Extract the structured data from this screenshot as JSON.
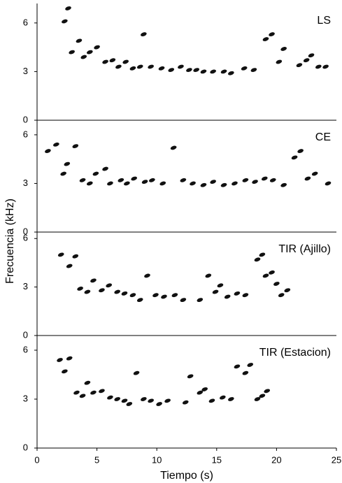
{
  "chart_data": [
    {
      "type": "scatter",
      "label": "LS",
      "xlim": [
        0,
        25
      ],
      "ylim": [
        0,
        7.2
      ],
      "yticks": [
        0,
        3,
        6
      ],
      "x": [
        2.3,
        2.6,
        2.9,
        3.5,
        3.9,
        4.4,
        5.0,
        5.7,
        6.3,
        6.8,
        7.4,
        8.0,
        8.9,
        8.6,
        9.5,
        10.4,
        11.2,
        12.0,
        12.7,
        13.3,
        13.9,
        14.7,
        15.6,
        16.2,
        17.3,
        18.1,
        19.1,
        19.6,
        20.2,
        20.6,
        21.9,
        22.5,
        22.9,
        23.5,
        24.1
      ],
      "y": [
        6.1,
        6.9,
        4.2,
        4.9,
        3.9,
        4.2,
        4.5,
        3.6,
        3.7,
        3.3,
        3.6,
        3.2,
        5.3,
        3.3,
        3.3,
        3.2,
        3.1,
        3.3,
        3.1,
        3.1,
        3.0,
        3.0,
        3.0,
        2.9,
        3.2,
        3.1,
        5.0,
        5.3,
        3.6,
        4.4,
        3.4,
        3.7,
        4.0,
        3.3,
        3.3
      ]
    },
    {
      "type": "scatter",
      "label": "CE",
      "y_label": "Frecuencia (kHz)",
      "xlim": [
        0,
        25
      ],
      "ylim": [
        0,
        6.9
      ],
      "yticks": [
        0,
        3,
        6
      ],
      "x": [
        0.9,
        1.6,
        2.2,
        2.5,
        3.2,
        3.8,
        4.4,
        4.9,
        5.7,
        6.1,
        7.0,
        7.5,
        8.1,
        9.0,
        9.6,
        10.5,
        11.4,
        12.2,
        13.0,
        13.9,
        14.7,
        15.6,
        16.5,
        17.4,
        18.2,
        19.0,
        19.7,
        20.6,
        21.5,
        22.0,
        22.6,
        23.2,
        24.3
      ],
      "y": [
        5.0,
        5.4,
        3.6,
        4.2,
        5.3,
        3.2,
        3.0,
        3.6,
        3.9,
        3.0,
        3.2,
        3.0,
        3.3,
        3.1,
        3.2,
        3.0,
        5.2,
        3.2,
        3.0,
        2.9,
        3.1,
        2.9,
        3.0,
        3.2,
        3.1,
        3.3,
        3.2,
        2.9,
        4.6,
        5.0,
        3.3,
        3.6,
        3.0
      ]
    },
    {
      "type": "scatter",
      "label": "TIR (Ajillo)",
      "xlim": [
        0,
        25
      ],
      "ylim": [
        0,
        6.4
      ],
      "yticks": [
        0,
        3,
        6
      ],
      "x": [
        2.0,
        2.7,
        3.2,
        3.6,
        4.2,
        4.7,
        5.4,
        6.0,
        6.7,
        7.3,
        8.0,
        8.6,
        9.2,
        9.9,
        10.6,
        11.5,
        12.2,
        13.6,
        14.3,
        14.9,
        15.3,
        15.9,
        16.7,
        17.4,
        18.4,
        18.8,
        19.1,
        19.6,
        20.0,
        20.4,
        20.9
      ],
      "y": [
        5.0,
        4.3,
        4.9,
        2.9,
        2.7,
        3.4,
        2.8,
        3.1,
        2.7,
        2.6,
        2.5,
        2.2,
        3.7,
        2.5,
        2.4,
        2.5,
        2.2,
        2.2,
        3.7,
        2.7,
        3.1,
        2.4,
        2.6,
        2.5,
        4.7,
        5.0,
        3.7,
        3.9,
        3.2,
        2.5,
        2.8
      ]
    },
    {
      "type": "scatter",
      "label": "TIR (Estacion)",
      "x_label": "Tiempo (s)",
      "xlim": [
        0,
        25
      ],
      "xticks": [
        0,
        5,
        10,
        15,
        20,
        25
      ],
      "ylim": [
        0,
        6.9
      ],
      "yticks": [
        0,
        3,
        6
      ],
      "x": [
        1.9,
        2.3,
        2.7,
        3.3,
        3.8,
        4.2,
        4.7,
        5.4,
        6.1,
        6.7,
        7.3,
        7.7,
        8.3,
        8.9,
        9.5,
        10.2,
        10.9,
        12.4,
        12.8,
        13.6,
        14.0,
        14.6,
        15.5,
        16.2,
        16.7,
        17.4,
        17.8,
        18.4,
        18.8,
        19.2
      ],
      "y": [
        5.4,
        4.7,
        5.5,
        3.4,
        3.2,
        4.0,
        3.4,
        3.5,
        3.1,
        3.0,
        2.9,
        2.7,
        4.6,
        3.0,
        2.9,
        2.7,
        2.9,
        2.8,
        4.4,
        3.4,
        3.6,
        2.9,
        3.1,
        3.0,
        5.0,
        4.6,
        5.1,
        3.0,
        3.2,
        3.5
      ]
    }
  ]
}
